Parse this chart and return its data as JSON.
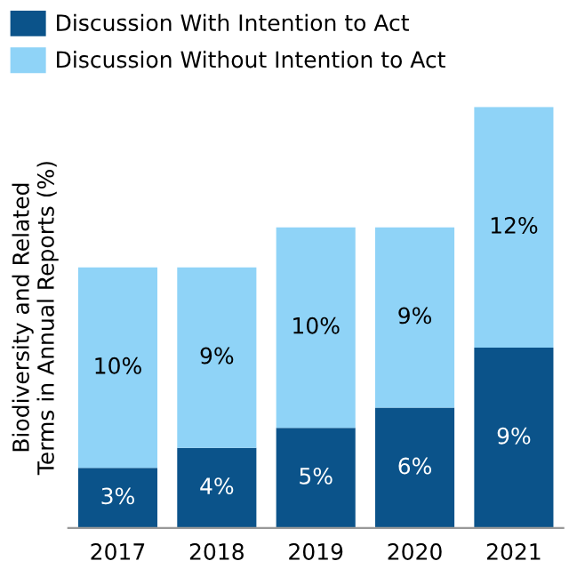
{
  "chart_data": {
    "type": "bar",
    "stacked": true,
    "ylabel": "Biodiversity and Related\nTerms in Annual Reports (%)",
    "categories": [
      "2017",
      "2018",
      "2019",
      "2020",
      "2021"
    ],
    "series": [
      {
        "name": "Discussion With Intention to Act",
        "color": "#0b538a",
        "values": [
          3,
          4,
          5,
          6,
          9
        ],
        "value_labels": [
          "3%",
          "4%",
          "5%",
          "6%",
          "9%"
        ]
      },
      {
        "name": "Discussion Without Intention to Act",
        "color": "#8fd3f7",
        "values": [
          10,
          9,
          10,
          9,
          12
        ],
        "value_labels": [
          "10%",
          "9%",
          "10%",
          "9%",
          "12%"
        ]
      }
    ],
    "legend": "top left",
    "grid": false
  }
}
